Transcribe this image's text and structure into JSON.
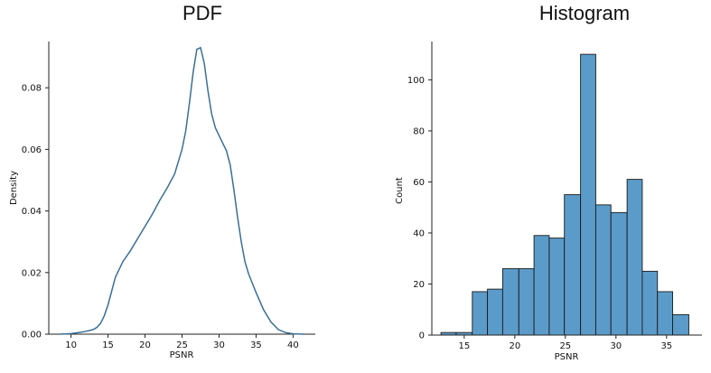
{
  "chart_data": [
    {
      "type": "line",
      "title": "PDF",
      "xlabel": "PSNR",
      "ylabel": "Density",
      "xlim": [
        7,
        43
      ],
      "ylim": [
        0,
        0.095
      ],
      "xticks": [
        10,
        15,
        20,
        25,
        30,
        35,
        40
      ],
      "yticks": [
        0.0,
        0.02,
        0.04,
        0.06,
        0.08
      ],
      "ytick_labels": [
        "0.00",
        "0.02",
        "0.04",
        "0.06",
        "0.08"
      ],
      "line_color": "#3a6f96",
      "x": [
        8.5,
        10,
        11,
        12,
        13,
        13.5,
        14,
        14.5,
        15,
        15.5,
        16,
        17,
        18,
        19,
        20,
        21,
        22,
        23,
        24,
        25,
        25.5,
        26,
        26.5,
        27,
        27.5,
        28,
        28.5,
        29,
        29.5,
        30,
        30.5,
        31,
        31.5,
        32,
        32.5,
        33,
        33.5,
        34,
        34.5,
        35,
        36,
        37,
        38,
        39,
        40,
        41.5
      ],
      "y": [
        0.0,
        0.0002,
        0.0005,
        0.0009,
        0.0015,
        0.0022,
        0.0035,
        0.006,
        0.0095,
        0.014,
        0.0185,
        0.0235,
        0.027,
        0.031,
        0.035,
        0.039,
        0.0435,
        0.0475,
        0.052,
        0.06,
        0.066,
        0.075,
        0.085,
        0.0925,
        0.093,
        0.088,
        0.079,
        0.0715,
        0.067,
        0.0645,
        0.062,
        0.0595,
        0.055,
        0.047,
        0.038,
        0.03,
        0.0235,
        0.0195,
        0.0165,
        0.0135,
        0.008,
        0.004,
        0.0015,
        0.0005,
        0.0001,
        0.0
      ]
    },
    {
      "type": "bar",
      "title": "Histogram",
      "xlabel": "PSNR",
      "ylabel": "Count",
      "xlim": [
        11.8,
        38.5
      ],
      "ylim": [
        0,
        115
      ],
      "xticks": [
        15,
        20,
        25,
        30,
        35
      ],
      "yticks": [
        0,
        20,
        40,
        60,
        80,
        100
      ],
      "bar_color": "#5b9bc9",
      "edge_color": "#1a1a1a",
      "bin_edges": [
        12.7,
        14.2,
        15.8,
        17.3,
        18.8,
        20.4,
        21.9,
        23.4,
        24.9,
        26.5,
        28.0,
        29.5,
        31.1,
        32.6,
        34.1,
        35.6,
        37.2
      ],
      "counts": [
        1,
        1,
        17,
        18,
        26,
        26,
        39,
        38,
        55,
        110,
        51,
        48,
        61,
        25,
        17,
        8
      ]
    }
  ]
}
